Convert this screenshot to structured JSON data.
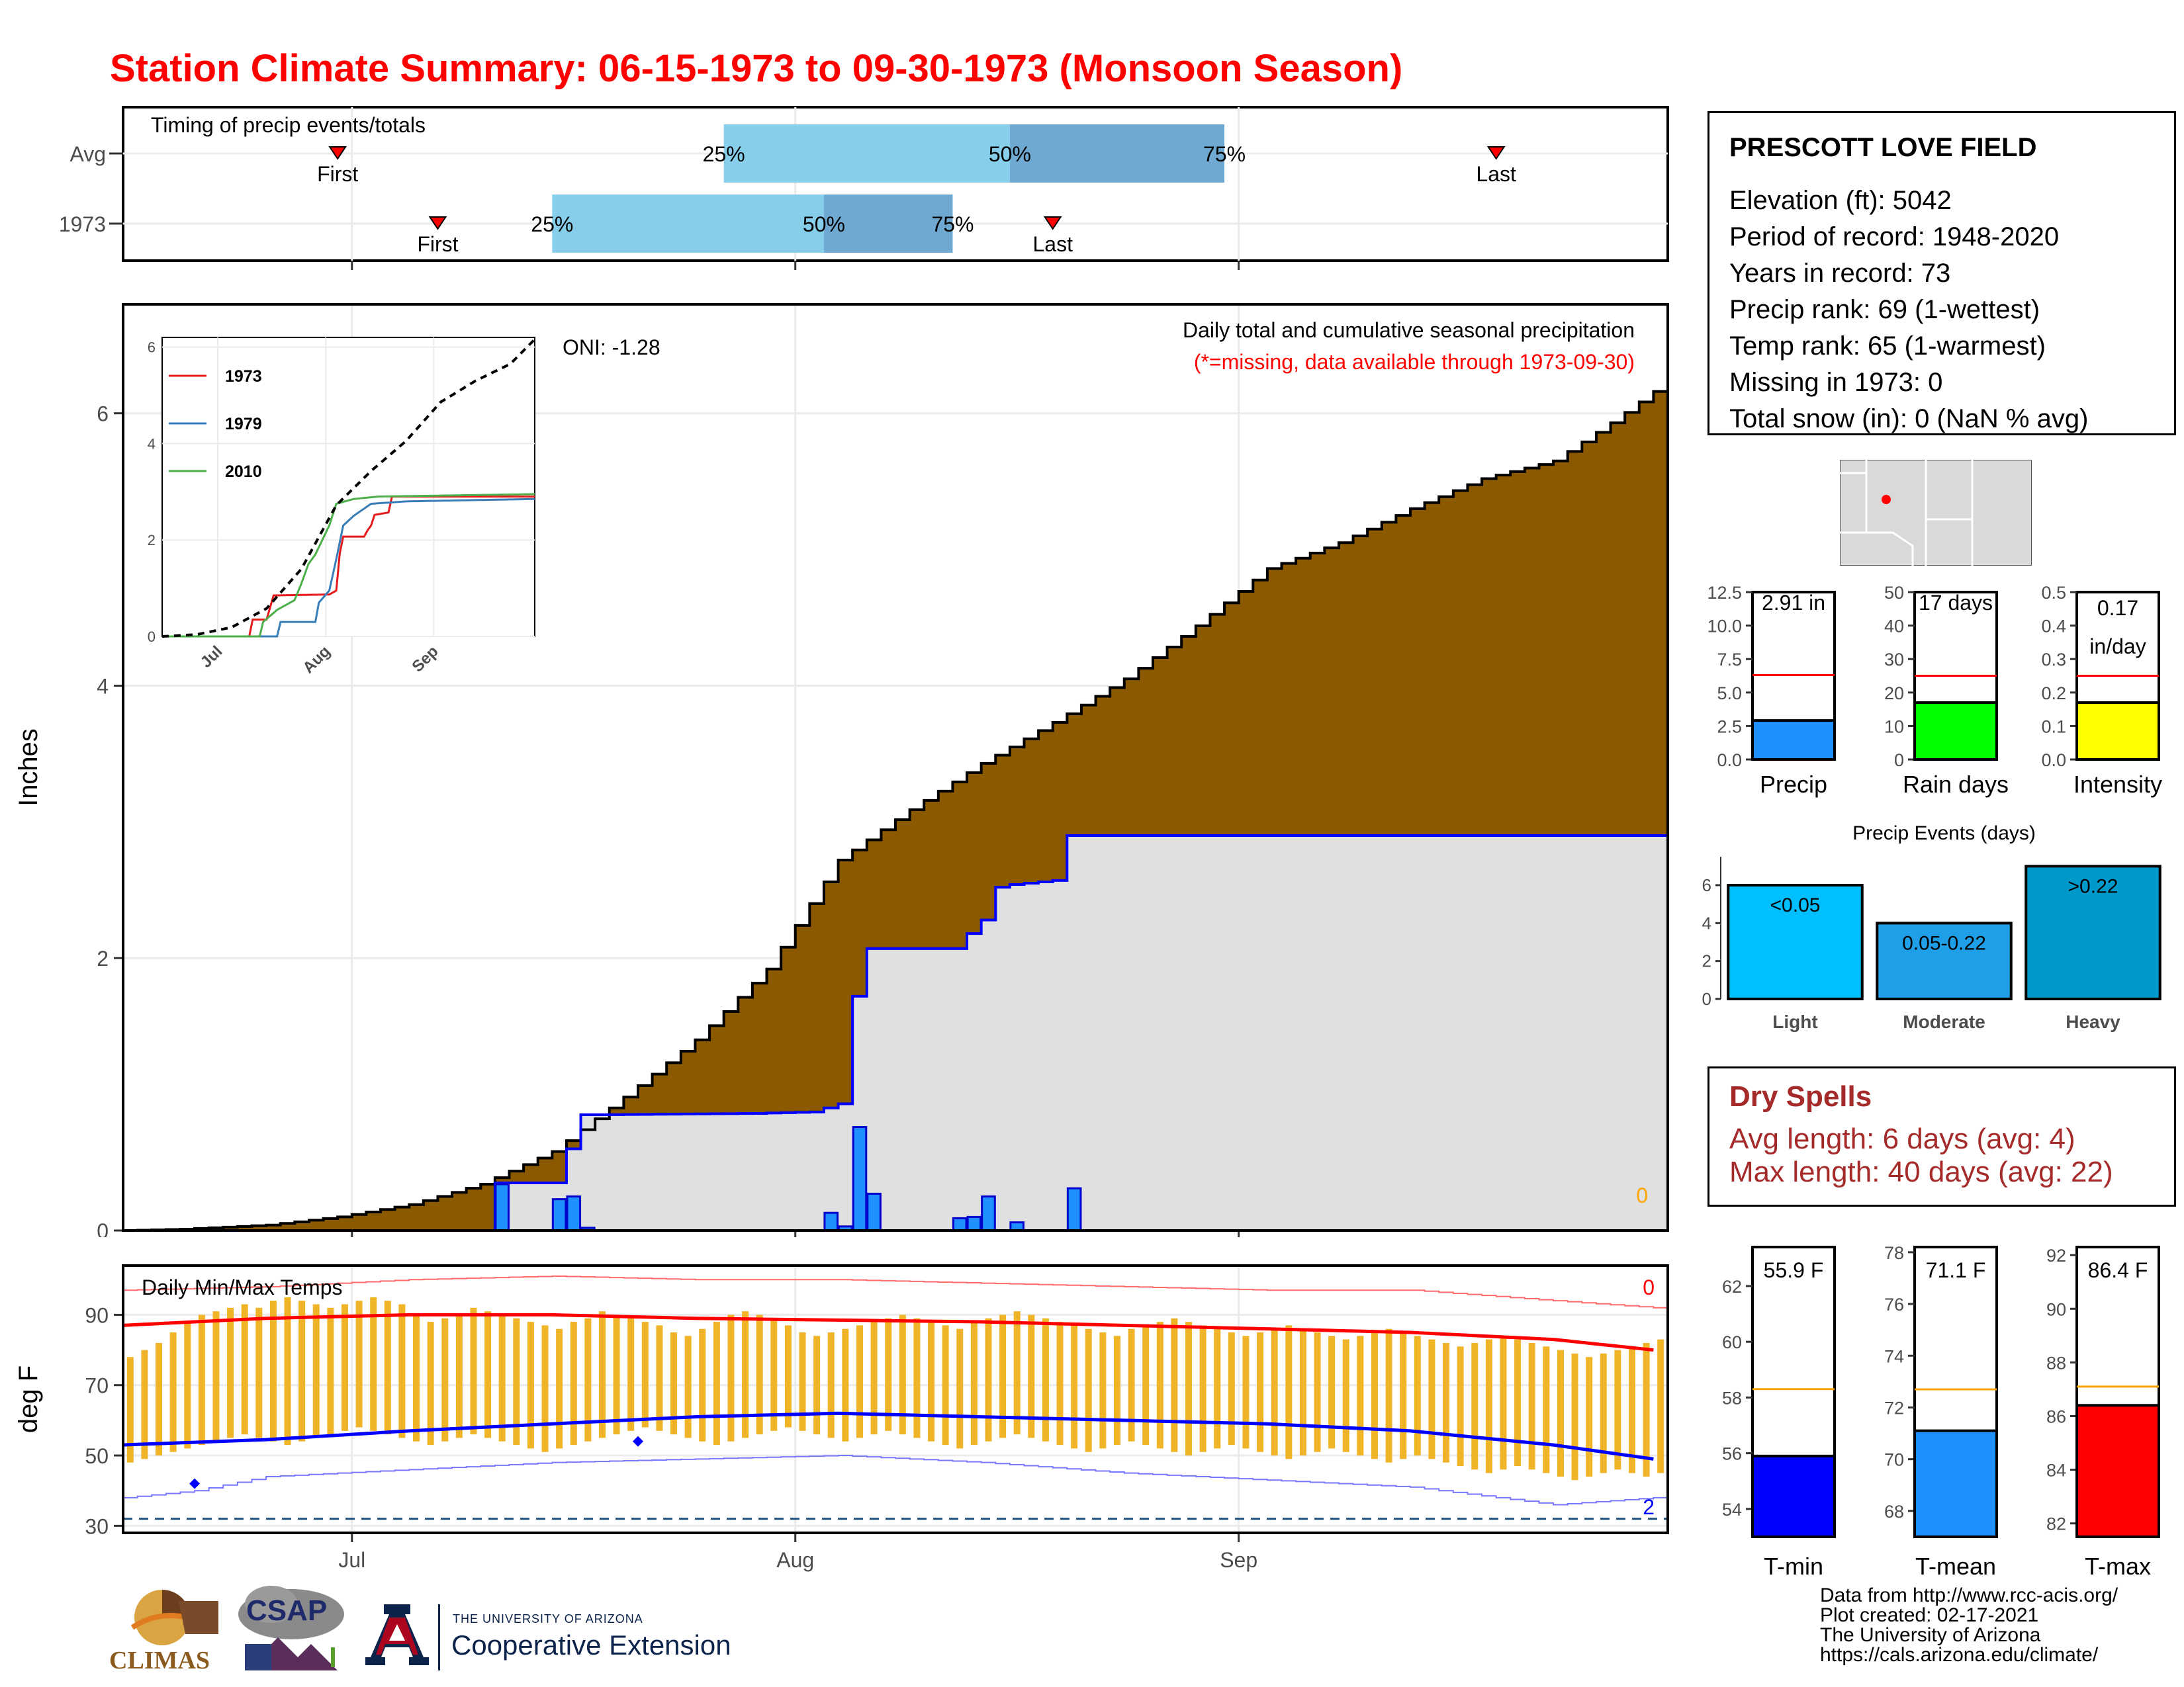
{
  "title": "Station Climate Summary: 06-15-1973 to 09-30-1973 (Monsoon Season)",
  "colors": {
    "title": "#ff0000",
    "cumulative_avg_fill": "#8b5a00",
    "cumulative_1973_fill": "#e0e0e0",
    "cumulative_1973_line": "#0000ff",
    "daily_bar": "#1e90ff",
    "temp_avg_range": "#f0b429",
    "avg_max": "#ff0000",
    "avg_min": "#0000ff",
    "quartile_light": "#87ceeb",
    "quartile_dark": "#6fa8d0",
    "dry_spells": "#a52a2a"
  },
  "timing_chart": {
    "title": "Timing of precip events/totals",
    "rows": [
      {
        "label": "Avg",
        "first": "Jun 30",
        "q25": "Jul 27",
        "q50": "Aug 16",
        "q75": "Aug 31",
        "last": "Sep 19",
        "first_day": 15,
        "q25_day": 42,
        "q50_day": 62,
        "q75_day": 77,
        "last_day": 96
      },
      {
        "label": "1973",
        "first": "Jul 7",
        "q25": "Jul 15",
        "q50": "Aug 3",
        "q75": "Aug 12",
        "last": "Aug 19",
        "first_day": 22,
        "q25_day": 30,
        "q50_day": 49,
        "q75_day": 58,
        "last_day": 65
      }
    ],
    "labels": {
      "first": "First",
      "last": "Last",
      "q25": "25%",
      "q50": "50%",
      "q75": "75%"
    }
  },
  "station_info": {
    "name": "PRESCOTT LOVE FIELD",
    "lines": [
      "Elevation (ft): 5042",
      "Period of record: 1948-2020",
      "Years in record: 73",
      "Precip rank: 69 (1-wettest)",
      "Temp rank: 65 (1-warmest)",
      "Missing in 1973: 0",
      "Total snow (in): 0 (NaN % avg)"
    ]
  },
  "chart_data": [
    {
      "type": "area",
      "id": "precip-main",
      "title": "Daily total and cumulative seasonal precipitation",
      "subtitle": "(*=missing, data available through 1973-09-30)",
      "annotation": "ONI: -1.28",
      "missing_count_label": "0",
      "ylabel": "Inches",
      "ylim": [
        0,
        6.8
      ],
      "yticks": [
        0,
        2,
        4,
        6
      ],
      "x_start": "1973-06-15",
      "x_end": "1973-09-30",
      "x_ticks": [
        "Jul",
        "Aug",
        "Sep"
      ],
      "x_tick_days": [
        16,
        47,
        78
      ],
      "series": [
        {
          "name": "Average cumulative",
          "points": [
            [
              0,
              0
            ],
            [
              4,
              0.01
            ],
            [
              10,
              0.04
            ],
            [
              15,
              0.1
            ],
            [
              20,
              0.19
            ],
            [
              25,
              0.34
            ],
            [
              30,
              0.58
            ],
            [
              35,
              0.98
            ],
            [
              40,
              1.4
            ],
            [
              45,
              1.92
            ],
            [
              50,
              2.72
            ],
            [
              55,
              3.09
            ],
            [
              60,
              3.43
            ],
            [
              65,
              3.73
            ],
            [
              70,
              4.05
            ],
            [
              75,
              4.44
            ],
            [
              80,
              4.86
            ],
            [
              85,
              5.05
            ],
            [
              90,
              5.3
            ],
            [
              95,
              5.52
            ],
            [
              100,
              5.65
            ],
            [
              104,
              5.93
            ],
            [
              107,
              6.16
            ]
          ]
        },
        {
          "name": "1973 cumulative",
          "points": [
            [
              0,
              0
            ],
            [
              25,
              0
            ],
            [
              26,
              0.35
            ],
            [
              30,
              0.35
            ],
            [
              31,
              0.6
            ],
            [
              32,
              0.85
            ],
            [
              33,
              0.85
            ],
            [
              44,
              0.86
            ],
            [
              48,
              0.87
            ],
            [
              49,
              0.9
            ],
            [
              50,
              0.93
            ],
            [
              51,
              1.72
            ],
            [
              52,
              2.07
            ],
            [
              58,
              2.07
            ],
            [
              59,
              2.18
            ],
            [
              60,
              2.28
            ],
            [
              61,
              2.52
            ],
            [
              62,
              2.54
            ],
            [
              65,
              2.57
            ],
            [
              66,
              2.9
            ],
            [
              107,
              2.9
            ]
          ]
        },
        {
          "name": "1973 daily",
          "points": [
            [
              26,
              0.34
            ],
            [
              30,
              0.23
            ],
            [
              31,
              0.25
            ],
            [
              32,
              0.02
            ],
            [
              49,
              0.13
            ],
            [
              50,
              0.03
            ],
            [
              51,
              0.76
            ],
            [
              52,
              0.27
            ],
            [
              58,
              0.09
            ],
            [
              59,
              0.1
            ],
            [
              60,
              0.25
            ],
            [
              62,
              0.06
            ],
            [
              66,
              0.31
            ]
          ]
        }
      ]
    },
    {
      "type": "line",
      "id": "precip-inset",
      "legend": [
        "1973",
        "1979",
        "2010"
      ],
      "ylim": [
        0,
        6.2
      ],
      "yticks": [
        0,
        2,
        4,
        6
      ],
      "x_ticks": [
        "Jul",
        "Aug",
        "Sep"
      ],
      "x_tick_days": [
        16,
        47,
        78
      ],
      "series": [
        {
          "name": "1973",
          "color": "#e41a1c",
          "points": [
            [
              0,
              0
            ],
            [
              25,
              0
            ],
            [
              26,
              0.35
            ],
            [
              30,
              0.35
            ],
            [
              31,
              0.6
            ],
            [
              32,
              0.85
            ],
            [
              48,
              0.87
            ],
            [
              50,
              0.95
            ],
            [
              51,
              1.72
            ],
            [
              52,
              2.07
            ],
            [
              58,
              2.07
            ],
            [
              59,
              2.2
            ],
            [
              60,
              2.3
            ],
            [
              61,
              2.52
            ],
            [
              65,
              2.57
            ],
            [
              66,
              2.9
            ],
            [
              107,
              2.9
            ]
          ]
        },
        {
          "name": "1979",
          "color": "#377eb8",
          "points": [
            [
              0,
              0
            ],
            [
              33,
              0
            ],
            [
              34,
              0.3
            ],
            [
              44,
              0.3
            ],
            [
              45,
              0.7
            ],
            [
              48,
              0.95
            ],
            [
              50,
              1.6
            ],
            [
              52,
              2.3
            ],
            [
              55,
              2.5
            ],
            [
              60,
              2.75
            ],
            [
              70,
              2.8
            ],
            [
              107,
              2.85
            ]
          ]
        },
        {
          "name": "2010",
          "color": "#4daf4a",
          "points": [
            [
              0,
              0
            ],
            [
              28,
              0
            ],
            [
              29,
              0.3
            ],
            [
              33,
              0.55
            ],
            [
              38,
              0.75
            ],
            [
              40,
              1.1
            ],
            [
              42,
              1.5
            ],
            [
              44,
              1.7
            ],
            [
              46,
              2.0
            ],
            [
              48,
              2.3
            ],
            [
              50,
              2.75
            ],
            [
              55,
              2.85
            ],
            [
              62,
              2.9
            ],
            [
              107,
              2.95
            ]
          ]
        },
        {
          "name": "Average",
          "color": "#000000",
          "dashed": true,
          "points": [
            [
              0,
              0
            ],
            [
              10,
              0.04
            ],
            [
              20,
              0.19
            ],
            [
              30,
              0.58
            ],
            [
              40,
              1.4
            ],
            [
              50,
              2.72
            ],
            [
              60,
              3.43
            ],
            [
              70,
              4.05
            ],
            [
              80,
              4.86
            ],
            [
              90,
              5.3
            ],
            [
              100,
              5.65
            ],
            [
              107,
              6.16
            ]
          ]
        }
      ]
    },
    {
      "type": "line",
      "id": "temps",
      "title": "Daily Min/Max Temps",
      "ylabel": "deg F",
      "ylim": [
        28,
        104
      ],
      "yticks": [
        30,
        50,
        70,
        90
      ],
      "x_ticks": [
        "Jul",
        "Aug",
        "Sep"
      ],
      "x_tick_days": [
        16,
        47,
        78
      ],
      "record_max_missing_label": "0",
      "record_min_missing_label": "2",
      "freezing_line": 32,
      "avg_max_points": [
        [
          0,
          87
        ],
        [
          10,
          89
        ],
        [
          20,
          90
        ],
        [
          30,
          90
        ],
        [
          40,
          89
        ],
        [
          50,
          88.5
        ],
        [
          60,
          88
        ],
        [
          70,
          87
        ],
        [
          80,
          86
        ],
        [
          90,
          85
        ],
        [
          100,
          83
        ],
        [
          107,
          80
        ]
      ],
      "avg_min_points": [
        [
          0,
          53
        ],
        [
          10,
          54.5
        ],
        [
          20,
          57
        ],
        [
          30,
          59
        ],
        [
          40,
          61
        ],
        [
          50,
          62
        ],
        [
          60,
          61
        ],
        [
          70,
          60
        ],
        [
          80,
          59
        ],
        [
          90,
          57
        ],
        [
          100,
          53
        ],
        [
          107,
          49
        ]
      ],
      "rec_max_points": [
        [
          0,
          97
        ],
        [
          10,
          98
        ],
        [
          20,
          100
        ],
        [
          30,
          101
        ],
        [
          40,
          100
        ],
        [
          50,
          100
        ],
        [
          60,
          99
        ],
        [
          70,
          98
        ],
        [
          80,
          97
        ],
        [
          90,
          97
        ],
        [
          100,
          94
        ],
        [
          107,
          92
        ]
      ],
      "rec_min_points": [
        [
          0,
          38
        ],
        [
          5,
          40
        ],
        [
          10,
          44
        ],
        [
          20,
          46
        ],
        [
          30,
          48
        ],
        [
          40,
          49
        ],
        [
          50,
          50
        ],
        [
          60,
          48
        ],
        [
          70,
          45
        ],
        [
          80,
          43
        ],
        [
          90,
          41
        ],
        [
          100,
          36
        ],
        [
          107,
          38
        ]
      ],
      "obs_min_markers": [
        [
          5,
          42
        ],
        [
          36,
          54
        ]
      ],
      "daily_max": [
        78,
        80,
        82,
        85,
        88,
        90,
        91,
        92,
        93,
        92,
        94,
        95,
        94,
        93,
        92,
        93,
        94,
        95,
        94,
        93,
        90,
        88,
        89,
        90,
        92,
        91,
        90,
        89,
        88,
        87,
        86,
        88,
        89,
        91,
        90,
        89,
        88,
        87,
        85,
        84,
        86,
        88,
        90,
        91,
        90,
        89,
        87,
        85,
        84,
        85,
        86,
        87,
        88,
        89,
        90,
        89,
        88,
        87,
        86,
        88,
        89,
        90,
        91,
        90,
        89,
        88,
        87,
        86,
        85,
        84,
        86,
        87,
        88,
        89,
        88,
        87,
        86,
        85,
        84,
        85,
        86,
        87,
        86,
        85,
        84,
        83,
        84,
        85,
        86,
        85,
        84,
        83,
        82,
        81,
        82,
        83,
        84,
        83,
        82,
        81,
        80,
        79,
        78,
        79,
        80,
        81,
        82,
        83
      ],
      "daily_min": [
        48,
        49,
        50,
        51,
        52,
        53,
        54,
        55,
        56,
        55,
        54,
        53,
        54,
        55,
        56,
        57,
        58,
        57,
        56,
        55,
        54,
        53,
        54,
        55,
        56,
        55,
        54,
        53,
        52,
        51,
        52,
        53,
        54,
        55,
        56,
        57,
        58,
        57,
        56,
        55,
        54,
        53,
        54,
        55,
        56,
        57,
        58,
        57,
        56,
        55,
        54,
        55,
        56,
        57,
        56,
        55,
        54,
        53,
        52,
        53,
        54,
        55,
        56,
        55,
        54,
        53,
        52,
        51,
        52,
        53,
        54,
        53,
        52,
        51,
        50,
        51,
        52,
        53,
        52,
        51,
        50,
        49,
        50,
        51,
        52,
        51,
        50,
        49,
        48,
        49,
        50,
        49,
        48,
        47,
        46,
        45,
        46,
        47,
        46,
        45,
        44,
        43,
        44,
        45,
        46,
        45,
        44,
        45
      ]
    },
    {
      "type": "bar",
      "id": "gauge-precip",
      "categories": [
        "Precip"
      ],
      "values": [
        2.91
      ],
      "average": 6.3,
      "ylim": [
        0,
        12.5
      ],
      "yticks": [
        0.0,
        2.5,
        5.0,
        7.5,
        10.0,
        12.5
      ],
      "label": "2.91 in",
      "color": "#1e90ff"
    },
    {
      "type": "bar",
      "id": "gauge-raindays",
      "categories": [
        "Rain days"
      ],
      "values": [
        17
      ],
      "average": 25,
      "ylim": [
        0,
        50
      ],
      "yticks": [
        0,
        10,
        20,
        30,
        40,
        50
      ],
      "label": "17 days",
      "color": "#00ff00"
    },
    {
      "type": "bar",
      "id": "gauge-intensity",
      "categories": [
        "Intensity"
      ],
      "values": [
        0.17
      ],
      "average": 0.25,
      "ylim": [
        0,
        0.5
      ],
      "yticks": [
        0.0,
        0.1,
        0.2,
        0.3,
        0.4,
        0.5
      ],
      "label_lines": [
        "0.17",
        "in/day"
      ],
      "color": "#ffff00"
    },
    {
      "type": "bar",
      "id": "precip-events",
      "title": "Precip Events (days)",
      "categories": [
        "Light",
        "Moderate",
        "Heavy"
      ],
      "bar_labels": [
        "<0.05",
        "0.05-0.22",
        ">0.22"
      ],
      "values": [
        6,
        4,
        7
      ],
      "colors": [
        "#00bfff",
        "#1e9fe8",
        "#0099cc"
      ],
      "ylim": [
        0,
        7.5
      ],
      "yticks": [
        0,
        2,
        4,
        6
      ]
    },
    {
      "type": "bar",
      "id": "gauge-tmin",
      "categories": [
        "T-min"
      ],
      "values": [
        55.9
      ],
      "average": 58.3,
      "ylim": [
        53,
        63.4
      ],
      "yticks": [
        54,
        56,
        58,
        60,
        62
      ],
      "label": "55.9 F",
      "color": "#0000ff"
    },
    {
      "type": "bar",
      "id": "gauge-tmean",
      "categories": [
        "T-mean"
      ],
      "values": [
        71.1
      ],
      "average": 72.7,
      "ylim": [
        67,
        78.2
      ],
      "yticks": [
        68,
        70,
        72,
        74,
        76,
        78
      ],
      "label": "71.1 F",
      "color": "#1e90ff"
    },
    {
      "type": "bar",
      "id": "gauge-tmax",
      "categories": [
        "T-max"
      ],
      "values": [
        86.4
      ],
      "average": 87.1,
      "ylim": [
        81.5,
        92.3
      ],
      "yticks": [
        82,
        84,
        86,
        88,
        90,
        92
      ],
      "label": "86.4 F",
      "color": "#ff0000"
    }
  ],
  "dry_spells": {
    "title": "Dry Spells",
    "avg_line": "Avg length: 6 days (avg: 4)",
    "max_line": "Max length: 40 days (avg: 22)"
  },
  "footer": {
    "lines": [
      "Data from http://www.rcc-acis.org/",
      "Plot created: 02-17-2021",
      "The University of Arizona",
      "https://cals.arizona.edu/climate/"
    ]
  },
  "logos": {
    "climas": "CLIMAS",
    "csap": "CSAP",
    "ua_small": "THE UNIVERSITY OF ARIZONA",
    "ua_large": "Cooperative Extension"
  }
}
